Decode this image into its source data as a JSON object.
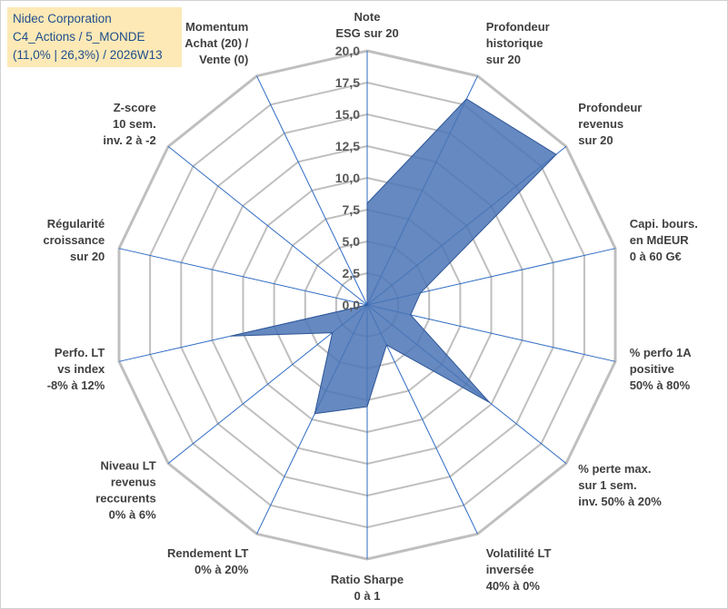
{
  "header": {
    "lines": [
      "Nidec Corporation",
      "C4_Actions / 5_MONDE",
      "(11,0% | 26,3%) / 2026W13"
    ]
  },
  "colors": {
    "fill": "#4a74b5",
    "stroke": "#2e5597",
    "grid": "#bfbfbf",
    "spoke": "#2e6bc4",
    "title_bg": "#fde9b6",
    "title_text": "#1f4e8c"
  },
  "chart_data": {
    "type": "radar",
    "rmax": 20,
    "ticks": [
      "0,0",
      "2,5",
      "5,0",
      "7,5",
      "10,0",
      "12,5",
      "15,0",
      "17,5",
      "20,0"
    ],
    "categories": [
      [
        "Note",
        "ESG sur 20"
      ],
      [
        "Profondeur",
        "historique",
        "sur 20"
      ],
      [
        "Profondeur",
        "revenus",
        "sur 20"
      ],
      [
        "Capi. bours.",
        "en MdEUR",
        "0 à 60 G€"
      ],
      [
        "% perfo 1A",
        "positive",
        "50% à 80%"
      ],
      [
        "% perte max.",
        "sur 1 sem.",
        "inv. 50% à 20%"
      ],
      [
        "Volatilité LT",
        "inversée",
        "40% à 0%"
      ],
      [
        "Ratio Sharpe",
        "0 à 1"
      ],
      [
        "Rendement LT",
        "0% à 20%"
      ],
      [
        "Niveau LT",
        "revenus",
        "reccurents",
        "0% à 6%"
      ],
      [
        "Perfo. LT",
        "vs index",
        "-8% à 12%"
      ],
      [
        "Régularité",
        "croissance",
        "sur 20"
      ],
      [
        "Z-score",
        "10 sem.",
        "inv. 2 à -2"
      ],
      [
        "Momentum",
        "Achat (20) /",
        "Vente (0)"
      ]
    ],
    "values": [
      8,
      18,
      19,
      4.3,
      3.5,
      12.3,
      3.5,
      8,
      9.5,
      3.5,
      11,
      0,
      0,
      0
    ]
  }
}
